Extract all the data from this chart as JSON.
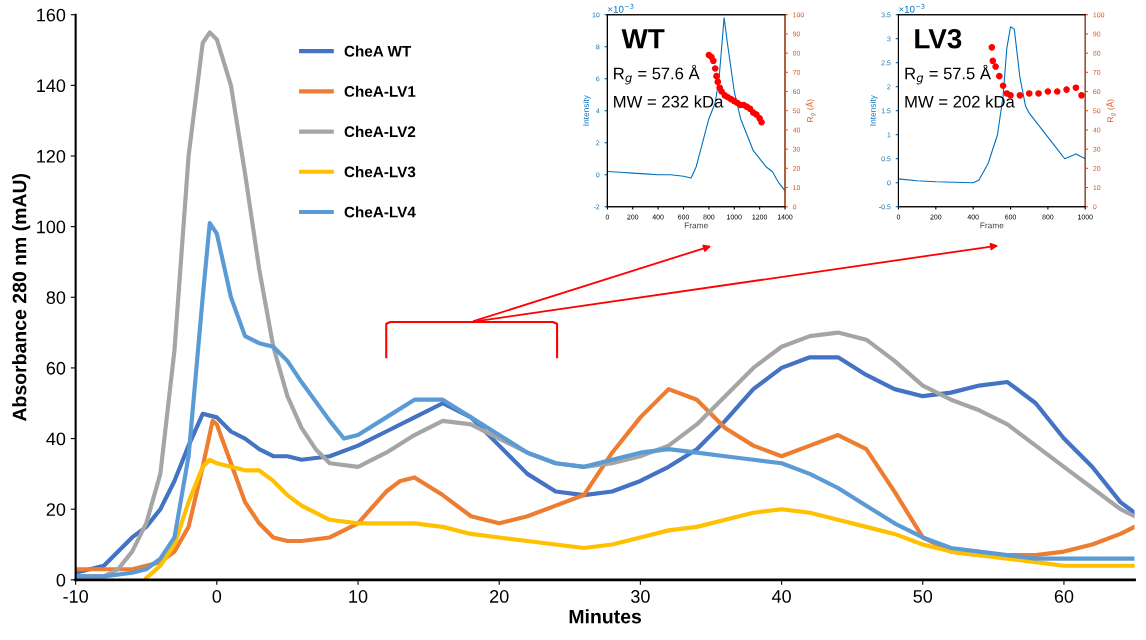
{
  "chart_data": [
    {
      "type": "line",
      "xlabel": "Minutes",
      "ylabel": "Absorbance 280 nm (mAU)",
      "xlim": [
        -10,
        65
      ],
      "xticks": [
        -10,
        0,
        10,
        20,
        30,
        40,
        50,
        60
      ],
      "ylim": [
        0,
        160
      ],
      "yticks": [
        0,
        20,
        40,
        60,
        80,
        100,
        120,
        140,
        160
      ],
      "grid": false,
      "legend": "top left",
      "marker": "none",
      "line_style": "solid",
      "series": [
        {
          "name": "CheA WT",
          "color": "#4472c4",
          "x": [
            -10,
            -8,
            -6,
            -5,
            -4,
            -3,
            -2,
            -1,
            0,
            1,
            2,
            3,
            4,
            5,
            6,
            8,
            10,
            12,
            14,
            16,
            18,
            20,
            22,
            24,
            26,
            28,
            30,
            32,
            34,
            36,
            38,
            40,
            42,
            44,
            46,
            48,
            50,
            52,
            54,
            56,
            58,
            60,
            62,
            64,
            65
          ],
          "values": [
            2,
            4,
            12,
            15,
            20,
            28,
            38,
            47,
            46,
            42,
            40,
            37,
            35,
            35,
            34,
            35,
            38,
            42,
            46,
            50,
            46,
            38,
            30,
            25,
            24,
            25,
            28,
            32,
            37,
            45,
            54,
            60,
            63,
            63,
            58,
            54,
            52,
            53,
            55,
            56,
            50,
            40,
            32,
            22,
            19
          ]
        },
        {
          "name": "CheA-LV1",
          "color": "#ed7d31",
          "x": [
            -10,
            -8,
            -6,
            -5,
            -4,
            -3,
            -2,
            -1,
            -0.3,
            0,
            1,
            2,
            3,
            4,
            5,
            6,
            8,
            10,
            12,
            13,
            14,
            16,
            18,
            20,
            22,
            24,
            26,
            28,
            30,
            32,
            34,
            36,
            38,
            40,
            42,
            44,
            46,
            48,
            50,
            52,
            54,
            56,
            58,
            60,
            62,
            64,
            65
          ],
          "values": [
            3,
            3,
            3,
            4,
            5,
            8,
            15,
            32,
            45,
            44,
            33,
            22,
            16,
            12,
            11,
            11,
            12,
            16,
            25,
            28,
            29,
            24,
            18,
            16,
            18,
            21,
            24,
            36,
            46,
            54,
            51,
            43,
            38,
            35,
            38,
            41,
            37,
            25,
            12,
            8,
            7,
            7,
            7,
            8,
            10,
            13,
            15
          ]
        },
        {
          "name": "CheA-LV2",
          "color": "#a5a5a5",
          "x": [
            -10,
            -8,
            -7,
            -6,
            -5,
            -4,
            -3,
            -2,
            -1,
            -0.5,
            0,
            1,
            2,
            3,
            4,
            5,
            6,
            7,
            8,
            10,
            12,
            14,
            16,
            18,
            20,
            22,
            24,
            26,
            28,
            30,
            32,
            34,
            36,
            38,
            40,
            42,
            44,
            46,
            48,
            50,
            52,
            54,
            56,
            58,
            60,
            62,
            64,
            65
          ],
          "values": [
            1,
            1,
            3,
            8,
            16,
            30,
            65,
            120,
            152,
            155,
            153,
            140,
            115,
            88,
            66,
            52,
            43,
            37,
            33,
            32,
            36,
            41,
            45,
            44,
            40,
            36,
            33,
            32,
            33,
            35,
            38,
            44,
            52,
            60,
            66,
            69,
            70,
            68,
            62,
            55,
            51,
            48,
            44,
            38,
            32,
            26,
            20,
            18
          ]
        },
        {
          "name": "CheA-LV3",
          "color": "#ffc000",
          "x": [
            -5,
            -4,
            -3,
            -2,
            -1,
            -0.5,
            0,
            1,
            2,
            3,
            4,
            5,
            6,
            8,
            10,
            12,
            14,
            16,
            18,
            20,
            22,
            24,
            26,
            28,
            30,
            32,
            34,
            36,
            38,
            40,
            42,
            44,
            46,
            48,
            50,
            52,
            54,
            56,
            58,
            60,
            62,
            64,
            65
          ],
          "values": [
            0.5,
            4,
            10,
            22,
            32,
            34,
            33,
            32,
            31,
            31,
            28,
            24,
            21,
            17,
            16,
            16,
            16,
            15,
            13,
            12,
            11,
            10,
            9,
            10,
            12,
            14,
            15,
            17,
            19,
            20,
            19,
            17,
            15,
            13,
            10,
            8,
            7,
            6,
            5,
            4,
            4,
            4,
            4
          ]
        },
        {
          "name": "CheA-LV4",
          "color": "#5b9bd5",
          "x": [
            -10,
            -8,
            -6,
            -5,
            -4,
            -3,
            -2,
            -1,
            -0.5,
            0,
            1,
            2,
            3,
            4,
            5,
            6,
            8,
            9,
            10,
            12,
            14,
            16,
            18,
            20,
            22,
            24,
            26,
            28,
            30,
            32,
            34,
            36,
            38,
            40,
            42,
            44,
            46,
            48,
            50,
            52,
            54,
            56,
            58,
            60,
            62,
            64,
            65
          ],
          "values": [
            1,
            1,
            2,
            3,
            6,
            12,
            35,
            80,
            101,
            98,
            80,
            69,
            67,
            66,
            62,
            56,
            45,
            40,
            41,
            46,
            51,
            51,
            46,
            41,
            36,
            33,
            32,
            34,
            36,
            37,
            36,
            35,
            34,
            33,
            30,
            26,
            21,
            16,
            12,
            9,
            8,
            7,
            6,
            6,
            6,
            6,
            6
          ]
        }
      ]
    },
    {
      "type": "line",
      "title": "WT",
      "xlabel": "Frame",
      "ylabel": "Intensity",
      "y2label": "R$_{g}$ (Å)",
      "xlim": [
        0,
        1400
      ],
      "xticks": [
        0,
        200,
        400,
        600,
        800,
        1000,
        1200,
        1400
      ],
      "ylim": [
        -2,
        10
      ],
      "yticks": [
        -2,
        0,
        2,
        4,
        6,
        8,
        10
      ],
      "y2lim": [
        0,
        100
      ],
      "y2ticks": [
        0,
        10,
        20,
        30,
        40,
        50,
        60,
        70,
        80,
        90,
        100
      ],
      "grid": false,
      "annotations": [
        "R$_{g}$ = 57.6 Å",
        "MW = 232 kDa",
        "×10$^{−3}$"
      ],
      "series": [
        {
          "color": "#0072bd",
          "x": [
            0,
            100,
            200,
            300,
            400,
            500,
            600,
            660,
            700,
            750,
            800,
            850,
            880,
            920,
            950,
            1000,
            1050,
            1100,
            1150,
            1200,
            1250,
            1300,
            1350,
            1400
          ],
          "values": [
            0.2,
            0.15,
            0.1,
            0.05,
            0,
            0,
            -0.1,
            -0.2,
            0.5,
            2,
            3.5,
            4.5,
            6,
            9.8,
            8,
            5.2,
            3.5,
            2.5,
            1.5,
            1,
            0.5,
            0.2,
            -0.5,
            -1
          ]
        },
        {
          "type": "scatter",
          "axis": "y2",
          "color": "#ff0000",
          "x": [
            800,
            820,
            835,
            850,
            860,
            870,
            885,
            900,
            925,
            950,
            975,
            1000,
            1025,
            1050,
            1075,
            1100,
            1125,
            1150,
            1175,
            1200,
            1215
          ],
          "values": [
            79,
            78,
            76,
            72,
            68,
            65,
            62,
            60,
            58,
            57,
            56,
            55,
            54,
            53,
            53,
            52,
            51,
            49,
            48,
            46,
            44
          ]
        }
      ]
    },
    {
      "type": "line",
      "title": "LV3",
      "xlabel": "Frame",
      "ylabel": "Intensity",
      "y2label": "R$_{g}$ (Å)",
      "xlim": [
        0,
        1000
      ],
      "xticks": [
        0,
        200,
        400,
        600,
        800,
        1000
      ],
      "ylim": [
        -0.5,
        3.5
      ],
      "yticks": [
        -0.5,
        0,
        0.5,
        1,
        1.5,
        2,
        2.5,
        3,
        3.5
      ],
      "y2lim": [
        0,
        100
      ],
      "y2ticks": [
        0,
        10,
        20,
        30,
        40,
        50,
        60,
        70,
        80,
        90,
        100
      ],
      "grid": false,
      "annotations": [
        "R$_{g}$ = 57.5 Å",
        "MW = 202 kDa",
        "×10$^{−3}$"
      ],
      "series": [
        {
          "color": "#0072bd",
          "x": [
            0,
            100,
            200,
            300,
            400,
            430,
            480,
            530,
            560,
            580,
            600,
            620,
            650,
            680,
            700,
            750,
            800,
            850,
            890,
            950,
            1000
          ],
          "values": [
            0.08,
            0.04,
            0.02,
            0.01,
            0,
            0.05,
            0.4,
            1,
            1.8,
            2.8,
            3.25,
            3.2,
            2.2,
            1.6,
            1.45,
            1.2,
            0.95,
            0.7,
            0.5,
            0.6,
            0.5
          ]
        },
        {
          "type": "scatter",
          "axis": "y2",
          "color": "#ff0000",
          "x": [
            500,
            505,
            520,
            540,
            560,
            580,
            600,
            650,
            700,
            750,
            800,
            850,
            900,
            950,
            980
          ],
          "values": [
            83,
            76,
            73,
            68,
            63,
            59,
            58,
            58,
            59,
            59,
            60,
            60,
            61,
            62,
            58
          ]
        }
      ]
    }
  ]
}
